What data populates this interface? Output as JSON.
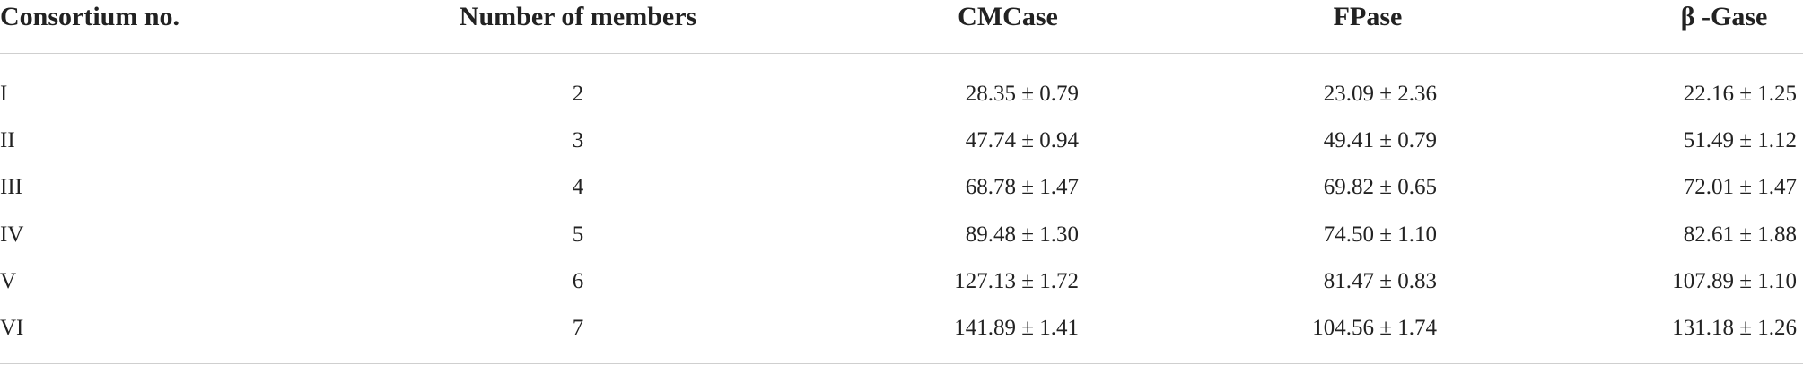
{
  "table": {
    "header": [
      "Consortium no.",
      "Number of members",
      "CMCase",
      "FPase",
      "β -Gase"
    ],
    "rows": [
      [
        "I",
        "2",
        "28.35 ± 0.79",
        "23.09 ± 2.36",
        "22.16 ± 1.25"
      ],
      [
        "II",
        "3",
        "47.74 ± 0.94",
        "49.41 ± 0.79",
        "51.49 ± 1.12"
      ],
      [
        "III",
        "4",
        "68.78 ± 1.47",
        "69.82 ± 0.65",
        "72.01 ± 1.47"
      ],
      [
        "IV",
        "5",
        "89.48 ± 1.30",
        "74.50 ± 1.10",
        "82.61 ± 1.88"
      ],
      [
        "V",
        "6",
        "127.13 ± 1.72",
        "81.47 ± 0.83",
        "107.89 ± 1.10"
      ],
      [
        "VI",
        "7",
        "141.89 ± 1.41",
        "104.56 ± 1.74",
        "131.18 ± 1.26"
      ]
    ]
  }
}
